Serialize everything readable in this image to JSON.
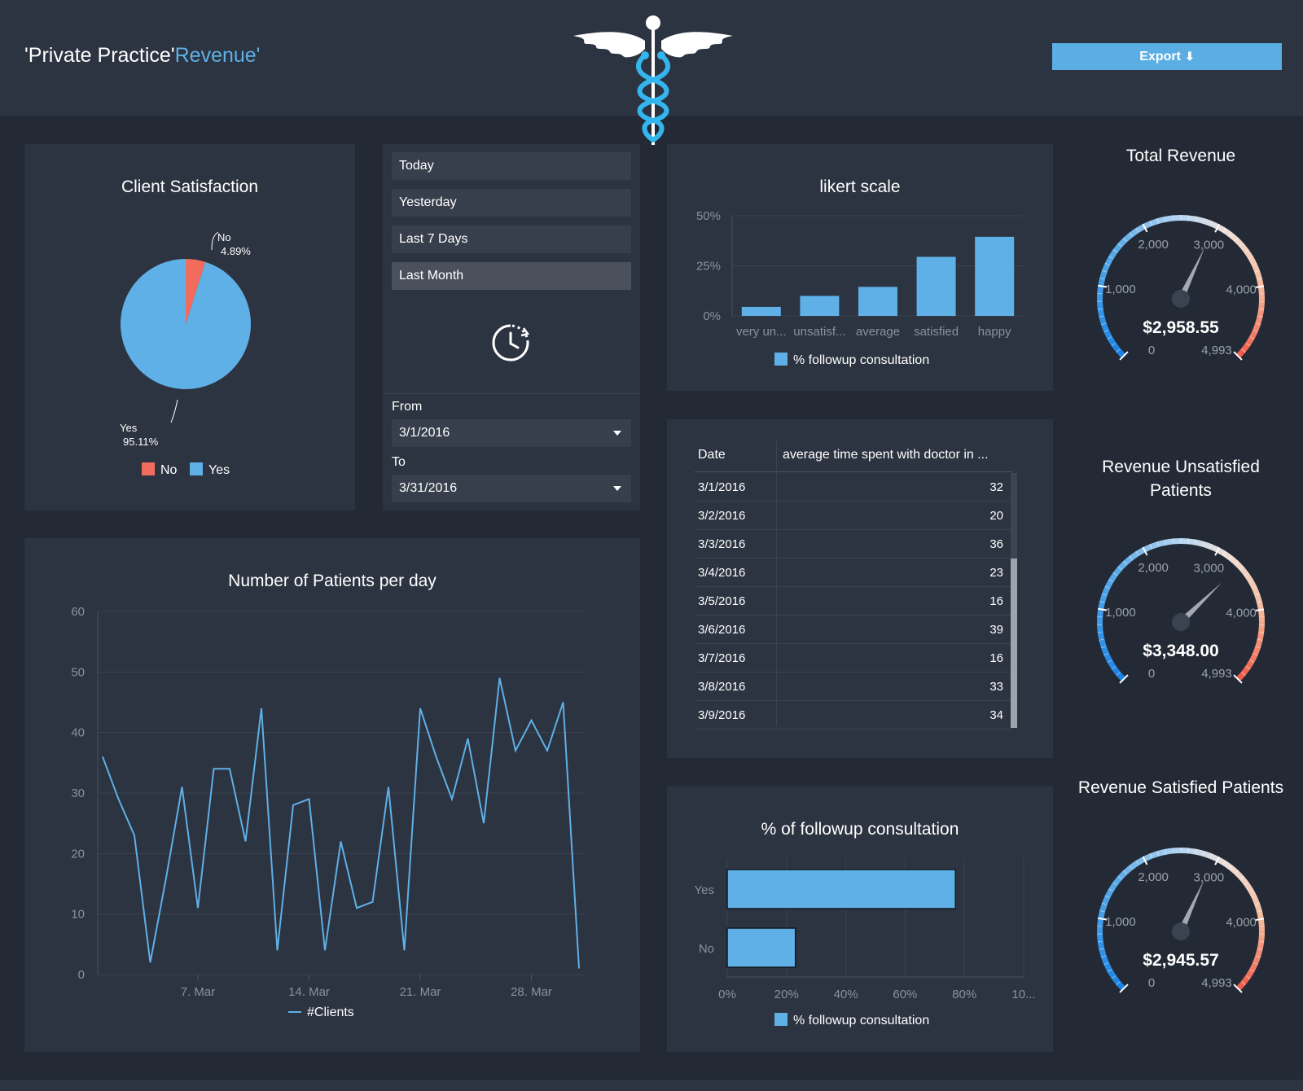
{
  "header": {
    "title_part1": "'Private Practice'",
    "title_part2": "Revenue'",
    "logo_icon": "caduceus-icon",
    "export_label": "Export",
    "export_icon": "download-circle-icon"
  },
  "colors": {
    "accent": "#5fb0e6",
    "bar": "#5fb0e6",
    "pie_no": "#f26c5e",
    "pie_yes": "#5fb0e6",
    "background": "#232a36",
    "panel": "#2c3341"
  },
  "client_satisfaction": {
    "title": "Client Satisfaction",
    "no_label": "No",
    "no_pct": "4.89%",
    "yes_label": "Yes",
    "yes_pct": "95.11%",
    "legend_no": "No",
    "legend_yes": "Yes"
  },
  "date_filter": {
    "buttons": [
      "Today",
      "Yesterday",
      "Last 7 Days",
      "Last Month"
    ],
    "active": "Last Month",
    "clock_icon": "clock-refresh-icon",
    "from_label": "From",
    "from_value": "3/1/2016",
    "to_label": "To",
    "to_value": "3/31/2016"
  },
  "patients_chart": {
    "title": "Number of Patients per day",
    "legend": "#Clients"
  },
  "likert_chart": {
    "title": "likert scale",
    "legend": "% followup consultation"
  },
  "time_table": {
    "col_date": "Date",
    "col_avg": "average time spent with doctor in ...",
    "rows": [
      {
        "date": "3/1/2016",
        "value": "32"
      },
      {
        "date": "3/2/2016",
        "value": "20"
      },
      {
        "date": "3/3/2016",
        "value": "36"
      },
      {
        "date": "3/4/2016",
        "value": "23"
      },
      {
        "date": "3/5/2016",
        "value": "16"
      },
      {
        "date": "3/6/2016",
        "value": "39"
      },
      {
        "date": "3/7/2016",
        "value": "16"
      },
      {
        "date": "3/8/2016",
        "value": "33"
      },
      {
        "date": "3/9/2016",
        "value": "34"
      }
    ]
  },
  "followup_chart": {
    "title": "% of followup consultation",
    "legend": "% followup consultation"
  },
  "gauges": [
    {
      "title": "Total Revenue",
      "value": 2958.55,
      "value_label": "$2,958.55",
      "min_label": "0",
      "max_label": "4,993",
      "max": 4993,
      "ticks": [
        "1,000",
        "2,000",
        "3,000",
        "4,000"
      ]
    },
    {
      "title": "Revenue Unsatisfied Patients",
      "value": 3348.0,
      "value_label": "$3,348.00",
      "min_label": "0",
      "max_label": "4,993",
      "max": 4993,
      "ticks": [
        "1,000",
        "2,000",
        "3,000",
        "4,000"
      ]
    },
    {
      "title": "Revenue Satisfied Patients",
      "value": 2945.57,
      "value_label": "$2,945.57",
      "min_label": "0",
      "max_label": "4,993",
      "max": 4993,
      "ticks": [
        "1,000",
        "2,000",
        "3,000",
        "4,000"
      ]
    }
  ],
  "chart_data": [
    {
      "type": "pie",
      "title": "Client Satisfaction",
      "labels": [
        "No",
        "Yes"
      ],
      "values": [
        4.89,
        95.11
      ],
      "legend": [
        "No",
        "Yes"
      ],
      "legend_placement": "bottom"
    },
    {
      "type": "line",
      "title": "Number of Patients per day",
      "x": [
        "3/1",
        "3/2",
        "3/3",
        "3/4",
        "3/5",
        "3/6",
        "3/7",
        "3/8",
        "3/9",
        "3/10",
        "3/11",
        "3/12",
        "3/13",
        "3/14",
        "3/15",
        "3/16",
        "3/17",
        "3/18",
        "3/19",
        "3/20",
        "3/21",
        "3/22",
        "3/23",
        "3/24",
        "3/25",
        "3/26",
        "3/27",
        "3/28",
        "3/29",
        "3/30",
        "3/31"
      ],
      "xticks": [
        "7. Mar",
        "14. Mar",
        "21. Mar",
        "28. Mar"
      ],
      "series": [
        {
          "name": "#Clients",
          "values": [
            36,
            29,
            23,
            2,
            16,
            31,
            11,
            34,
            34,
            22,
            44,
            4,
            28,
            29,
            4,
            22,
            11,
            12,
            31,
            4,
            44,
            36,
            29,
            39,
            25,
            49,
            37,
            42,
            37,
            45,
            1
          ]
        }
      ],
      "ylim": [
        0,
        60
      ],
      "yticks": [
        "0",
        "10",
        "20",
        "30",
        "40",
        "50",
        "60"
      ],
      "grid": true,
      "legend_placement": "bottom"
    },
    {
      "type": "bar",
      "title": "likert scale",
      "categories": [
        "very un...",
        "unsatisf...",
        "average",
        "satisfied",
        "happy"
      ],
      "series": [
        {
          "name": "% followup consultation",
          "values": [
            4.5,
            10,
            14.5,
            29.5,
            39.5
          ]
        }
      ],
      "ylim": [
        0,
        50
      ],
      "yticks": [
        "0%",
        "25%",
        "50%"
      ],
      "grid": true,
      "legend_placement": "bottom"
    },
    {
      "type": "table",
      "columns": [
        "Date",
        "average time spent with doctor in ..."
      ],
      "rows": [
        [
          "3/1/2016",
          "32"
        ],
        [
          "3/2/2016",
          "20"
        ],
        [
          "3/3/2016",
          "36"
        ],
        [
          "3/4/2016",
          "23"
        ],
        [
          "3/5/2016",
          "16"
        ],
        [
          "3/6/2016",
          "39"
        ],
        [
          "3/7/2016",
          "16"
        ],
        [
          "3/8/2016",
          "33"
        ],
        [
          "3/9/2016",
          "34"
        ]
      ]
    },
    {
      "type": "bar",
      "orientation": "horizontal",
      "title": "% of followup consultation",
      "categories": [
        "Yes",
        "No"
      ],
      "series": [
        {
          "name": "% followup consultation",
          "values": [
            77,
            23
          ]
        }
      ],
      "xlim": [
        0,
        100
      ],
      "xticks": [
        "0%",
        "20%",
        "40%",
        "60%",
        "80%",
        "10..."
      ],
      "grid": true,
      "legend_placement": "bottom"
    }
  ]
}
